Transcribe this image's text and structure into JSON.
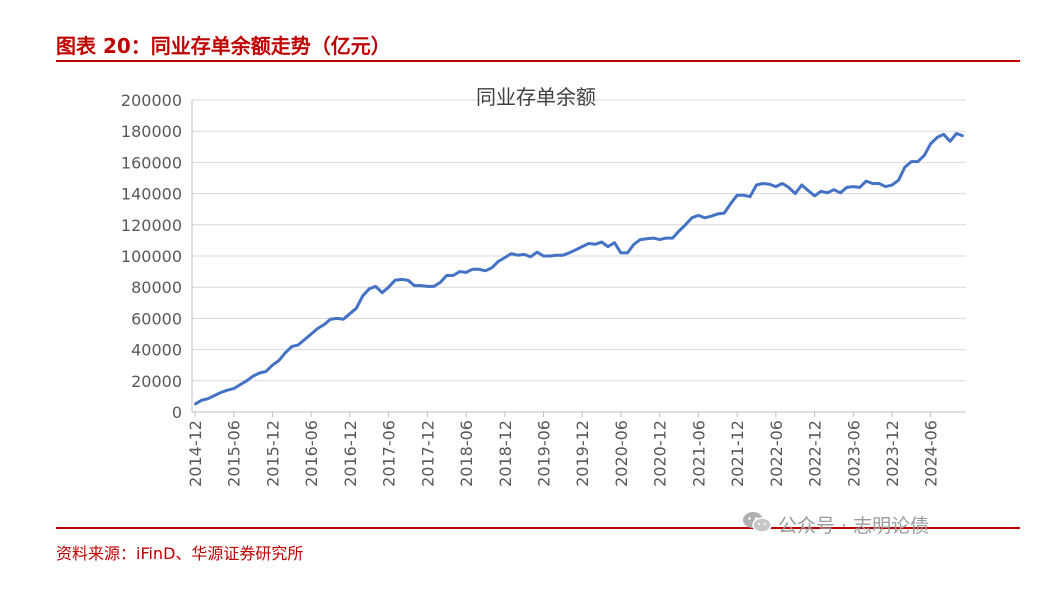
{
  "header": {
    "title": "图表 20：同业存单余额走势（亿元）"
  },
  "footer": {
    "source": "资料来源：iFinD、华源证券研究所"
  },
  "watermark": {
    "text": "公众号 · 志明论债",
    "icon": "wechat-icon"
  },
  "colors": {
    "accent": "#c00000",
    "line": "#4472c4",
    "grid": "#d9d9d9",
    "axis_text": "#595959"
  },
  "chart_data": {
    "type": "line",
    "title": "同业存单余额",
    "xlabel": "",
    "ylabel": "",
    "ylim": [
      0,
      200000
    ],
    "yticks": [
      0,
      20000,
      40000,
      60000,
      80000,
      100000,
      120000,
      140000,
      160000,
      180000,
      200000
    ],
    "grid": true,
    "legend": "none",
    "xtick_labels": [
      "2014-12",
      "2015-06",
      "2015-12",
      "2016-06",
      "2016-12",
      "2017-06",
      "2017-12",
      "2018-06",
      "2018-12",
      "2019-06",
      "2019-12",
      "2020-06",
      "2020-12",
      "2021-06",
      "2021-12",
      "2022-06",
      "2022-12",
      "2023-06",
      "2023-12",
      "2024-06"
    ],
    "x_start": "2014-12",
    "series": [
      {
        "values": [
          5000,
          7500,
          8500,
          10500,
          12500,
          14000,
          15000,
          17500,
          20000,
          23000,
          25000,
          26000,
          30000,
          33000,
          38000,
          42000,
          43000,
          46500,
          50000,
          53500,
          56000,
          59500,
          60000,
          59500,
          63000,
          66500,
          74500,
          79000,
          80500,
          76500,
          80000,
          84500,
          85000,
          84500,
          81000,
          81000,
          80500,
          80500,
          83000,
          87500,
          87500,
          90000,
          89500,
          91500,
          91500,
          90500,
          92500,
          96500,
          99000,
          101500,
          100500,
          101000,
          99500,
          102500,
          100000,
          100000,
          100500,
          100500,
          102000,
          104000,
          106000,
          108000,
          107500,
          109000,
          106000,
          108500,
          102000,
          102000,
          107500,
          110500,
          111000,
          111500,
          110500,
          111500,
          111500,
          116000,
          120000,
          124500,
          126000,
          124500,
          125500,
          127000,
          127500,
          133500,
          139000,
          139000,
          138000,
          145500,
          146500,
          146000,
          144500,
          146500,
          144000,
          140000,
          145500,
          142000,
          138500,
          141500,
          140500,
          142500,
          140500,
          144000,
          144500,
          144000,
          148000,
          146500,
          146500,
          144500,
          145500,
          148500,
          157000,
          160500,
          160500,
          164500,
          172000,
          176000,
          178000,
          173500,
          178500,
          177000
        ]
      }
    ]
  }
}
